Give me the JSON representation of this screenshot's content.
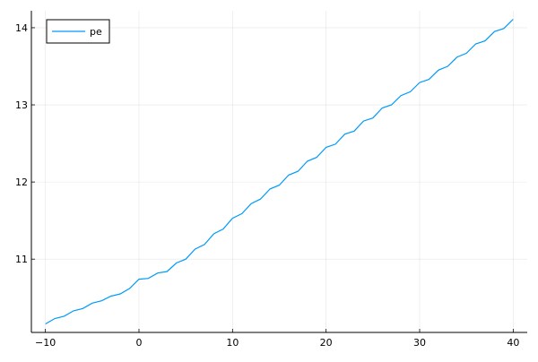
{
  "chart_data": {
    "type": "line",
    "title": "",
    "xlabel": "",
    "ylabel": "",
    "xlim": [
      -11.5,
      41.5
    ],
    "ylim": [
      10.05,
      14.22
    ],
    "xticks": [
      -10,
      0,
      10,
      20,
      30,
      40
    ],
    "yticks": [
      11,
      12,
      13,
      14
    ],
    "xtick_labels": [
      "−10",
      "0",
      "10",
      "20",
      "30",
      "40"
    ],
    "ytick_labels": [
      "11",
      "12",
      "13",
      "14"
    ],
    "grid": true,
    "legend_position": "top-left",
    "series": [
      {
        "name": "pe",
        "color": "#009af9",
        "x": [
          -10,
          -9,
          -8,
          -7,
          -6,
          -5,
          -4,
          -3,
          -2,
          -1,
          0,
          1,
          2,
          3,
          4,
          5,
          6,
          7,
          8,
          9,
          10,
          11,
          12,
          13,
          14,
          15,
          16,
          17,
          18,
          19,
          20,
          21,
          22,
          23,
          24,
          25,
          26,
          27,
          28,
          29,
          30,
          31,
          32,
          33,
          34,
          35,
          36,
          37,
          38,
          39,
          40
        ],
        "y": [
          10.16,
          10.23,
          10.26,
          10.33,
          10.36,
          10.43,
          10.46,
          10.52,
          10.55,
          10.62,
          10.74,
          10.75,
          10.82,
          10.84,
          10.95,
          11.0,
          11.13,
          11.19,
          11.33,
          11.39,
          11.53,
          11.59,
          11.72,
          11.78,
          11.91,
          11.96,
          12.09,
          12.14,
          12.27,
          12.32,
          12.45,
          12.49,
          12.62,
          12.66,
          12.79,
          12.83,
          12.96,
          13.0,
          13.12,
          13.17,
          13.29,
          13.33,
          13.45,
          13.5,
          13.62,
          13.67,
          13.79,
          13.83,
          13.95,
          13.99,
          14.11
        ]
      }
    ]
  }
}
